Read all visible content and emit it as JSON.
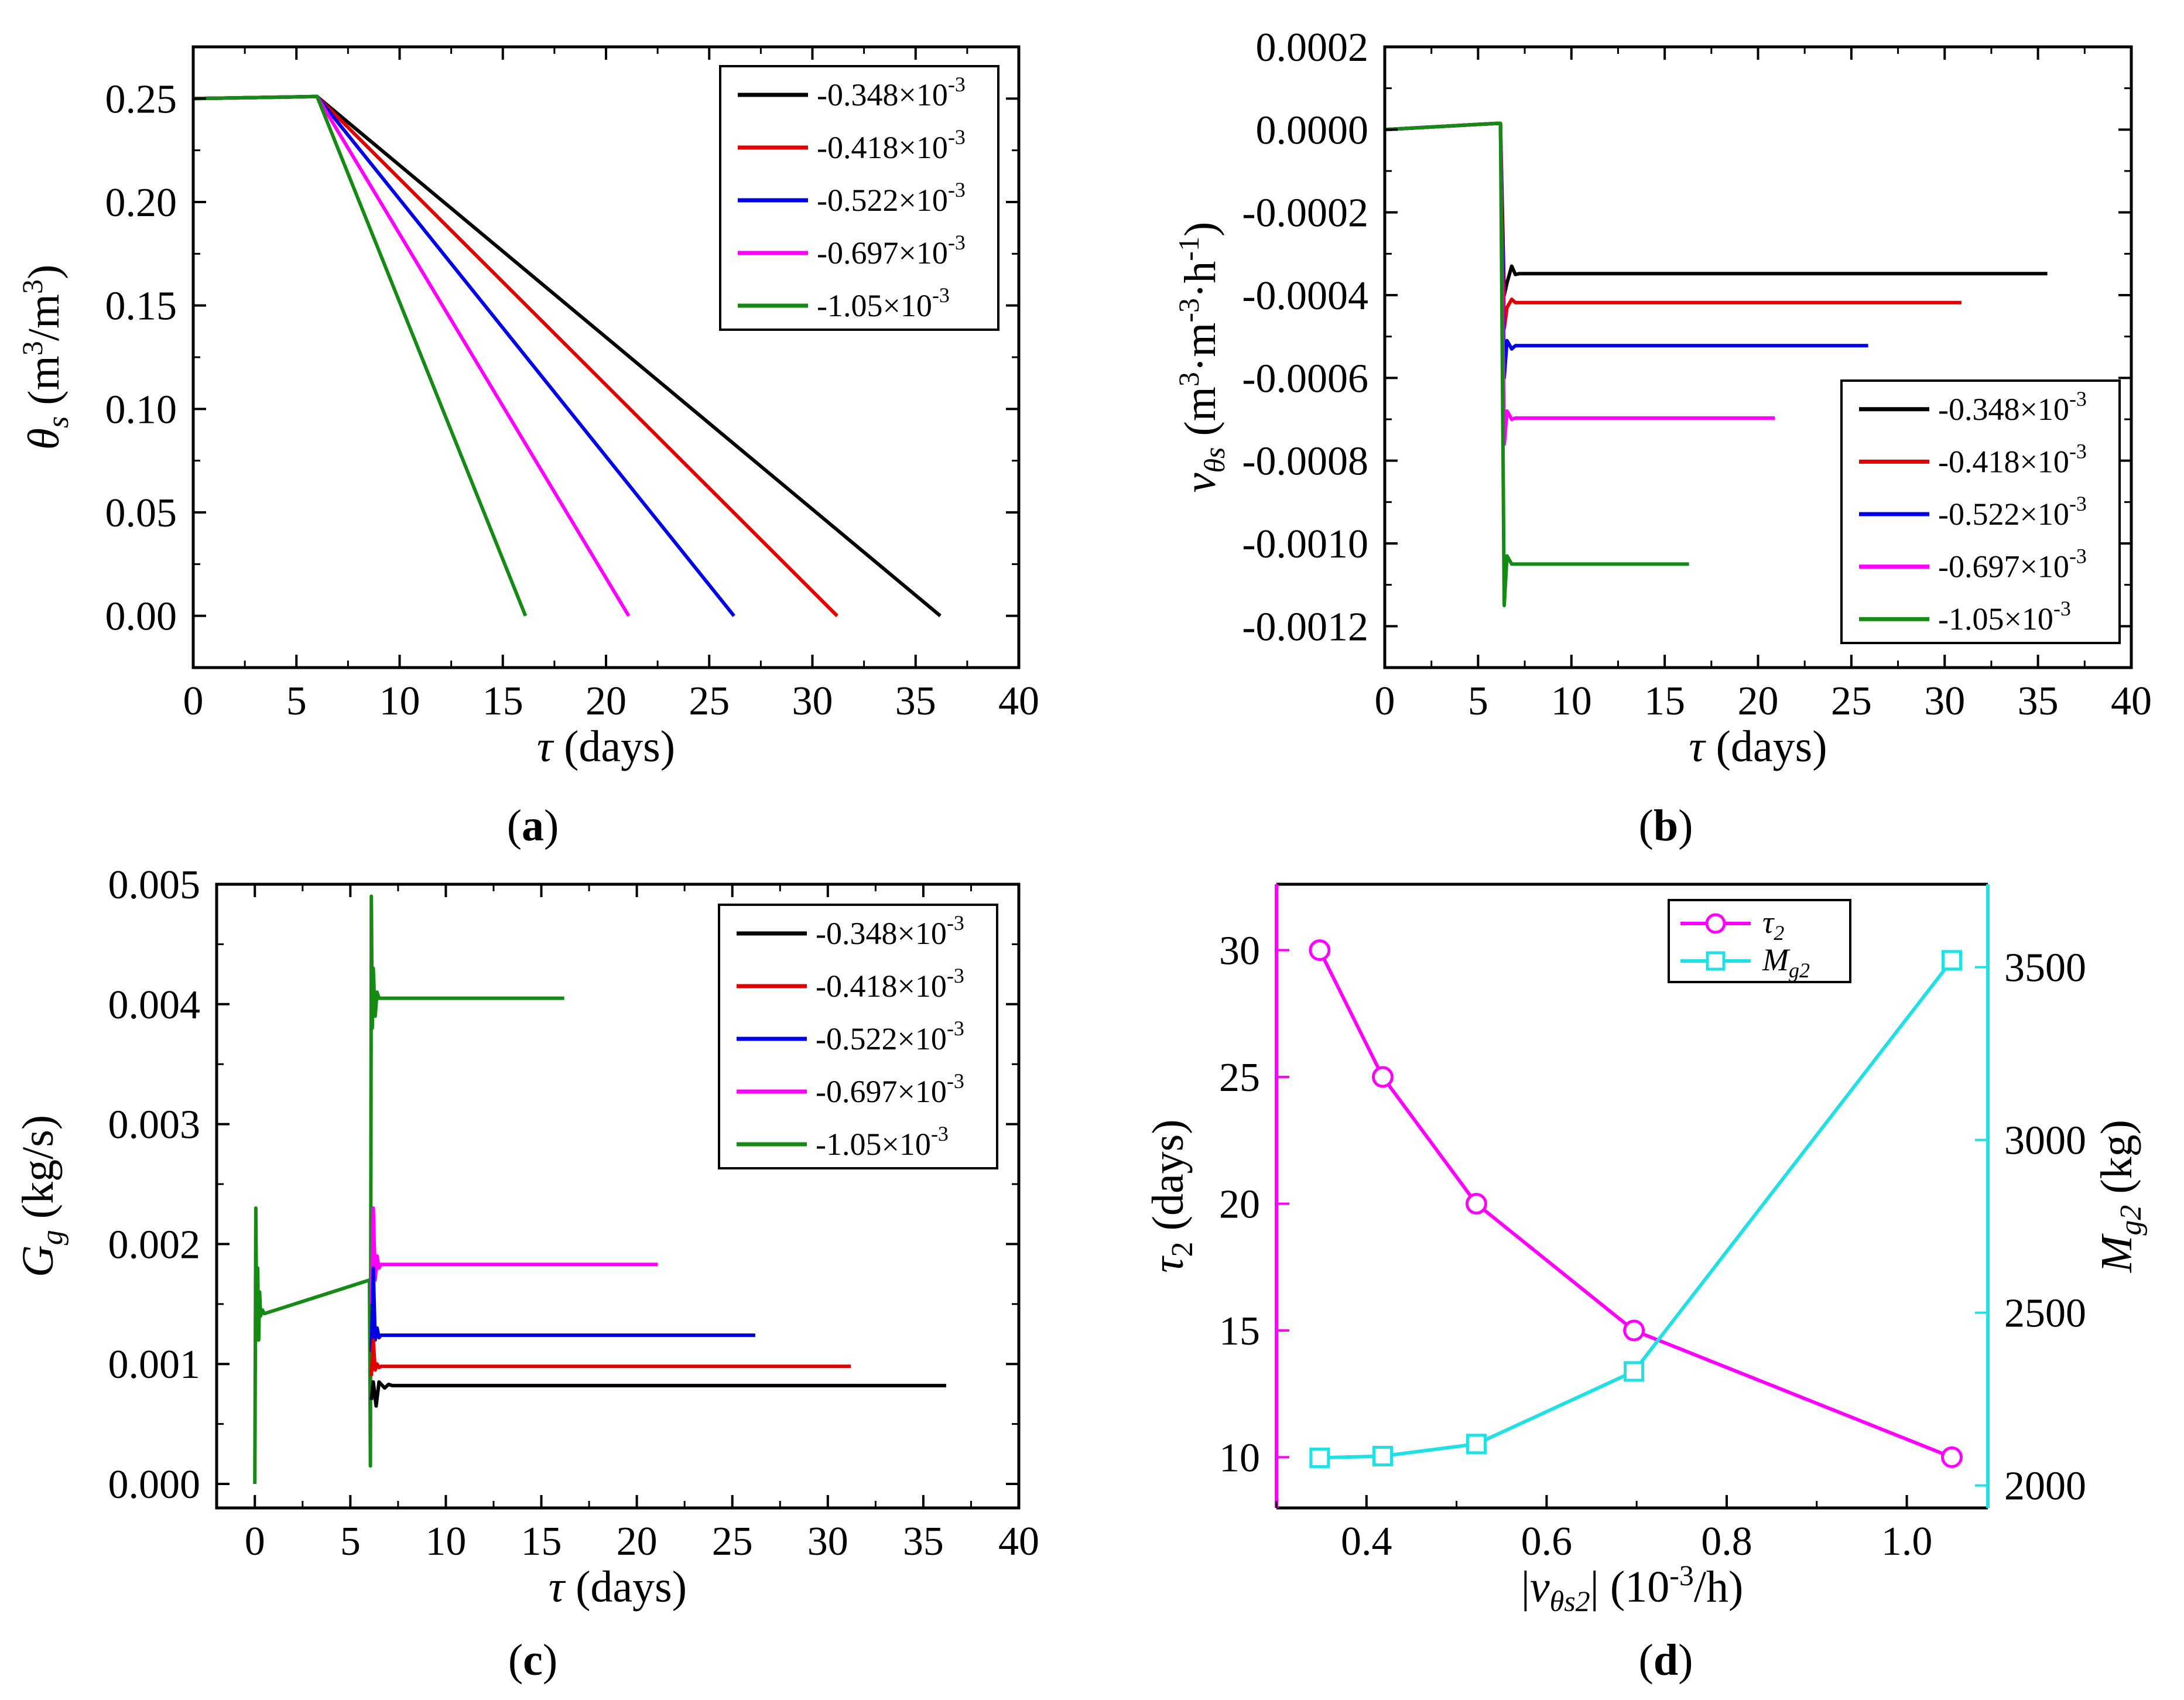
{
  "colors": {
    "black": "#000000",
    "red": "#e00000",
    "blue": "#0000e6",
    "magenta": "#ff00ff",
    "green": "#158a15",
    "cyan": "#20e0e6"
  },
  "legend_entries": [
    {
      "base": "-0.348×10",
      "exp": "-3",
      "color": "#000000"
    },
    {
      "base": "-0.418×10",
      "exp": "-3",
      "color": "#e00000"
    },
    {
      "base": "-0.522×10",
      "exp": "-3",
      "color": "#0000e6"
    },
    {
      "base": "-0.697×10",
      "exp": "-3",
      "color": "#ff00ff"
    },
    {
      "base": "-1.05×10",
      "exp": "-3",
      "color": "#158a15"
    }
  ],
  "captions": {
    "a": "a",
    "b": "b",
    "c": "c",
    "d": "d"
  },
  "chart_data": [
    {
      "id": "a",
      "type": "line",
      "xlabel": {
        "sym": "τ",
        "unit": " (days)"
      },
      "ylabel": {
        "sym": "θ",
        "sub": "s",
        "unit_pre": " (m",
        "sup1": "3",
        "mid": "/m",
        "sup2": "3",
        "unit_post": ")"
      },
      "xlim": [
        0,
        40
      ],
      "ylim": [
        -0.025,
        0.275
      ],
      "xticks": [
        0,
        5,
        10,
        15,
        20,
        25,
        30,
        35,
        40
      ],
      "xtick_labels": [
        "0",
        "5",
        "10",
        "15",
        "20",
        "25",
        "30",
        "35",
        "40"
      ],
      "yticks": [
        0.0,
        0.05,
        0.1,
        0.15,
        0.2,
        0.25
      ],
      "ytick_labels": [
        "0.00",
        "0.05",
        "0.10",
        "0.15",
        "0.20",
        "0.25"
      ],
      "series": [
        {
          "name": "-0.348×10^-3",
          "color": "#000000",
          "x": [
            0,
            6,
            36.2
          ],
          "y": [
            0.25,
            0.251,
            0.0
          ]
        },
        {
          "name": "-0.418×10^-3",
          "color": "#e00000",
          "x": [
            0,
            6,
            31.2
          ],
          "y": [
            0.25,
            0.251,
            0.0
          ]
        },
        {
          "name": "-0.522×10^-3",
          "color": "#0000e6",
          "x": [
            0,
            6,
            26.2
          ],
          "y": [
            0.25,
            0.251,
            0.0
          ]
        },
        {
          "name": "-0.697×10^-3",
          "color": "#ff00ff",
          "x": [
            0,
            6,
            21.1
          ],
          "y": [
            0.25,
            0.251,
            0.0
          ]
        },
        {
          "name": "-1.05×10^-3",
          "color": "#158a15",
          "x": [
            0,
            6,
            16.1
          ],
          "y": [
            0.25,
            0.251,
            0.0
          ]
        }
      ]
    },
    {
      "id": "b",
      "type": "line",
      "xlabel": {
        "sym": "τ",
        "unit": " (days)"
      },
      "ylabel": {
        "sym": "ν",
        "sub": "θs",
        "unit_pre": " (m",
        "sup1": "3",
        "mid": "·m",
        "sup2": "-3",
        "mid2": "·h",
        "sup3": "-1",
        "unit_post": ")"
      },
      "xlim": [
        0,
        40
      ],
      "ylim": [
        -0.0013,
        0.0002
      ],
      "xticks": [
        0,
        5,
        10,
        15,
        20,
        25,
        30,
        35,
        40
      ],
      "xtick_labels": [
        "0",
        "5",
        "10",
        "15",
        "20",
        "25",
        "30",
        "35",
        "40"
      ],
      "yticks": [
        0.0002,
        0.0,
        -0.0002,
        -0.0004,
        -0.0006,
        -0.0008,
        -0.001,
        -0.0012
      ],
      "ytick_labels": [
        "0.0002",
        "0.0000",
        "-0.0002",
        "-0.0004",
        "-0.0006",
        "-0.0008",
        "-0.0010",
        "-0.0012"
      ],
      "series": [
        {
          "name": "-0.348×10^-3",
          "color": "#000000",
          "x": [
            0,
            6,
            6.2,
            6.4,
            6.55,
            6.8,
            7.0,
            7.2,
            35.5
          ],
          "y": [
            0,
            1.5e-05,
            1.5e-05,
            -0.0004,
            -0.00037,
            -0.00033,
            -0.00035,
            -0.000348,
            -0.000348
          ]
        },
        {
          "name": "-0.418×10^-3",
          "color": "#e00000",
          "x": [
            0,
            6,
            6.2,
            6.4,
            6.55,
            6.8,
            7.0,
            30.9
          ],
          "y": [
            0,
            1.5e-05,
            1.5e-05,
            -0.00048,
            -0.00043,
            -0.00041,
            -0.000418,
            -0.000418
          ]
        },
        {
          "name": "-0.522×10^-3",
          "color": "#0000e6",
          "x": [
            0,
            6,
            6.2,
            6.4,
            6.55,
            6.8,
            7.0,
            25.9
          ],
          "y": [
            0,
            1.5e-05,
            1.5e-05,
            -0.0006,
            -0.00051,
            -0.00053,
            -0.000522,
            -0.000522
          ]
        },
        {
          "name": "-0.697×10^-3",
          "color": "#ff00ff",
          "x": [
            0,
            6,
            6.2,
            6.4,
            6.55,
            6.8,
            7.0,
            20.9
          ],
          "y": [
            0,
            1.5e-05,
            1.5e-05,
            -0.00076,
            -0.00068,
            -0.0007,
            -0.000697,
            -0.000697
          ]
        },
        {
          "name": "-1.05×10^-3",
          "color": "#158a15",
          "x": [
            0,
            6,
            6.2,
            6.4,
            6.55,
            6.8,
            7.0,
            16.3
          ],
          "y": [
            0,
            1.5e-05,
            1.5e-05,
            -0.00115,
            -0.00103,
            -0.00105,
            -0.00105,
            -0.00105
          ]
        }
      ]
    },
    {
      "id": "c",
      "type": "line",
      "xlabel": {
        "sym": "τ",
        "unit": " (days)"
      },
      "ylabel": {
        "sym": "G",
        "sub": "g",
        "unit_pre": " (kg/s)"
      },
      "xlim": [
        -2,
        40
      ],
      "ylim": [
        -0.0002,
        0.005
      ],
      "xticks": [
        0,
        5,
        10,
        15,
        20,
        25,
        30,
        35,
        40
      ],
      "xtick_labels": [
        "0",
        "5",
        "10",
        "15",
        "20",
        "25",
        "30",
        "35",
        "40"
      ],
      "yticks": [
        0.0,
        0.001,
        0.002,
        0.003,
        0.004,
        0.005
      ],
      "ytick_labels": [
        "0.000",
        "0.001",
        "0.002",
        "0.003",
        "0.004",
        "0.005"
      ],
      "series": [
        {
          "name": "-1.05×10^-3",
          "color": "#158a15",
          "x": [
            0.0,
            0.05,
            0.1,
            0.15,
            0.2,
            0.25,
            0.3,
            0.4,
            0.5,
            6.0,
            6.05,
            6.1,
            6.15,
            6.2,
            6.3,
            6.4,
            6.5,
            16.2
          ],
          "y": [
            0.0,
            0.0023,
            0.0012,
            0.0018,
            0.0012,
            0.0016,
            0.0014,
            0.00145,
            0.00142,
            0.0017,
            0.00015,
            0.0049,
            0.0038,
            0.0043,
            0.0039,
            0.0041,
            0.00405,
            0.00405
          ]
        },
        {
          "name": "-0.697×10^-3",
          "color": "#ff00ff",
          "x": [
            6.1,
            6.2,
            6.3,
            6.4,
            6.5,
            6.6,
            21.1
          ],
          "y": [
            0.0015,
            0.0023,
            0.0017,
            0.0019,
            0.0018,
            0.00183,
            0.00183
          ]
        },
        {
          "name": "-0.522×10^-3",
          "color": "#0000e6",
          "x": [
            6.1,
            6.2,
            6.3,
            6.4,
            6.5,
            6.6,
            26.2
          ],
          "y": [
            0.0011,
            0.0018,
            0.0012,
            0.0013,
            0.00122,
            0.00124,
            0.00124
          ]
        },
        {
          "name": "-0.418×10^-3",
          "color": "#e00000",
          "x": [
            6.1,
            6.2,
            6.3,
            6.4,
            6.5,
            6.6,
            31.2
          ],
          "y": [
            0.0009,
            0.0012,
            0.00095,
            0.001,
            0.00097,
            0.00098,
            0.00098
          ]
        },
        {
          "name": "-0.348×10^-3",
          "color": "#000000",
          "x": [
            6.1,
            6.2,
            6.35,
            6.5,
            6.8,
            7.0,
            7.2,
            36.2
          ],
          "y": [
            0.0007,
            0.00085,
            0.00065,
            0.00085,
            0.0008,
            0.00083,
            0.00082,
            0.00082
          ]
        }
      ]
    },
    {
      "id": "d",
      "type": "line",
      "xlabel": {
        "abs_sym": "ν",
        "sub": "θs2",
        "unit_pre": " (10",
        "sup1": "-3",
        "unit_post": "/h)"
      },
      "ylabel": {
        "sym": "τ",
        "sub": "2",
        "unit_pre": " (days)"
      },
      "y2label": {
        "sym": "M",
        "sub": "g2",
        "unit_pre": " (kg)"
      },
      "xlim": [
        0.3,
        1.09
      ],
      "ylim": [
        8,
        32.6
      ],
      "y2lim": [
        1935,
        3740
      ],
      "xticks": [
        0.4,
        0.6,
        0.8,
        1.0
      ],
      "xtick_labels": [
        "0.4",
        "0.6",
        "0.8",
        "1.0"
      ],
      "yticks": [
        10,
        15,
        20,
        25,
        30
      ],
      "ytick_labels": [
        "10",
        "15",
        "20",
        "25",
        "30"
      ],
      "y2ticks": [
        2000,
        2500,
        3000,
        3500
      ],
      "y2tick_labels": [
        "2000",
        "2500",
        "3000",
        "3500"
      ],
      "series": [
        {
          "name": "τ2",
          "sub": "2",
          "sym": "τ",
          "color": "#ff00ff",
          "marker": "circle",
          "axis": "left",
          "x": [
            0.348,
            0.418,
            0.522,
            0.697,
            1.05
          ],
          "y": [
            30,
            25,
            20,
            15,
            10
          ]
        },
        {
          "name": "Mg2",
          "sub": "g2",
          "sym": "M",
          "color": "#20e0e6",
          "marker": "square",
          "axis": "right",
          "x": [
            0.348,
            0.418,
            0.522,
            0.697,
            1.05
          ],
          "y": [
            2080,
            2085,
            2120,
            2330,
            3520
          ]
        }
      ]
    }
  ]
}
